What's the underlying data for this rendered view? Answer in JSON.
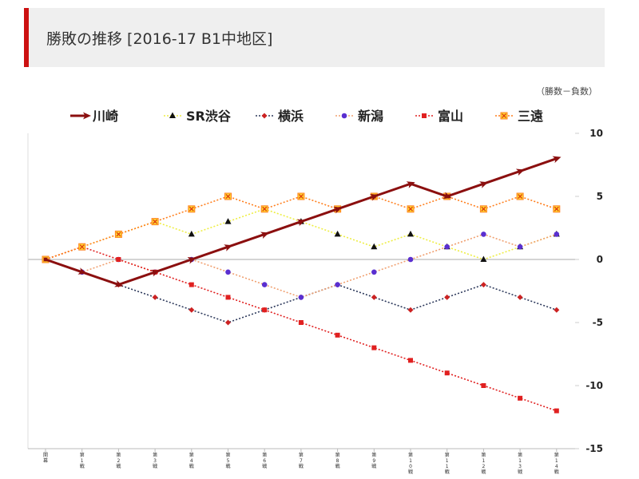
{
  "header": {
    "title": "勝敗の推移 [2016-17 B1中地区]"
  },
  "chart_data": {
    "type": "line",
    "title": "勝敗の推移 [2016-17 B1中地区]",
    "note": "（勝数－負数）",
    "ylim": [
      -15,
      10
    ],
    "yticks": [
      "10",
      "5",
      "0",
      "-5",
      "-10",
      "-15"
    ],
    "categories": [
      "開幕",
      "第1戦",
      "第2戦",
      "第3戦",
      "第4戦",
      "第5戦",
      "第6戦",
      "第7戦",
      "第8戦",
      "第9戦",
      "第10戦",
      "第11戦",
      "第12戦",
      "第13戦",
      "第14戦"
    ],
    "legend_position": "top",
    "grid": false,
    "series": [
      {
        "name": "川崎",
        "color": "#8b0f0f",
        "marker": "arrow",
        "style": "solid",
        "values": [
          0,
          -1,
          -2,
          -1,
          0,
          1,
          2,
          3,
          4,
          5,
          6,
          5,
          6,
          7,
          8
        ]
      },
      {
        "name": "SR渋谷",
        "color": "#eeee44",
        "marker": "triangle",
        "style": "dotted",
        "values": [
          0,
          1,
          2,
          3,
          2,
          3,
          4,
          3,
          2,
          1,
          2,
          1,
          0,
          1,
          2
        ]
      },
      {
        "name": "横浜",
        "color": "#2e3a5c",
        "marker": "diamond",
        "style": "dotted",
        "values": [
          0,
          -1,
          -2,
          -3,
          -4,
          -5,
          -4,
          -3,
          -2,
          -3,
          -4,
          -3,
          -2,
          -3,
          -4
        ]
      },
      {
        "name": "新潟",
        "color": "#f0a070",
        "marker": "circle",
        "style": "dotted",
        "values": [
          0,
          -1,
          0,
          -1,
          0,
          -1,
          -2,
          -3,
          -2,
          -1,
          0,
          1,
          2,
          1,
          2
        ]
      },
      {
        "name": "富山",
        "color": "#e02020",
        "marker": "square",
        "style": "dotted",
        "values": [
          0,
          1,
          0,
          -1,
          -2,
          -3,
          -4,
          -5,
          -6,
          -7,
          -8,
          -9,
          -10,
          -11,
          -12
        ]
      },
      {
        "name": "三遠",
        "color": "#ff7f1e",
        "marker": "star",
        "style": "dotted",
        "values": [
          0,
          1,
          2,
          3,
          4,
          5,
          4,
          5,
          4,
          5,
          4,
          5,
          4,
          5,
          4
        ]
      }
    ]
  }
}
